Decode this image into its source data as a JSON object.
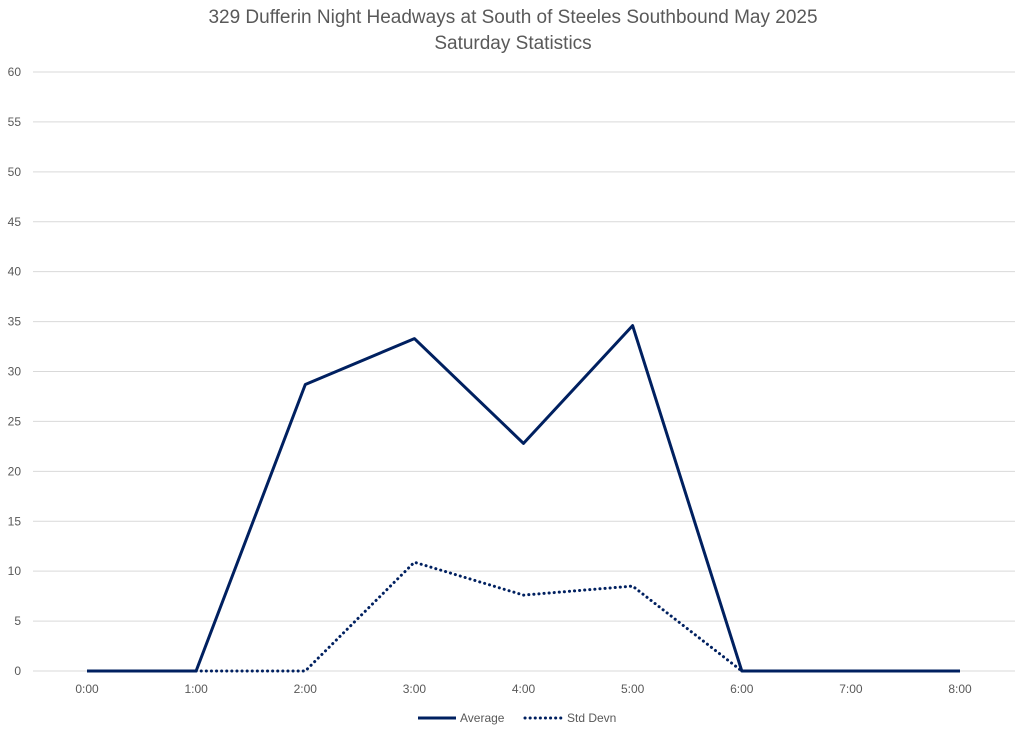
{
  "chart_data": {
    "type": "line",
    "title": "329 Dufferin Night Headways at South of Steeles Southbound May 2025",
    "subtitle": "Saturday Statistics",
    "xlabel": "",
    "ylabel": "",
    "categories": [
      "0:00",
      "1:00",
      "2:00",
      "3:00",
      "4:00",
      "5:00",
      "6:00",
      "7:00",
      "8:00"
    ],
    "ylim": [
      0,
      60
    ],
    "yticks": [
      0,
      5,
      10,
      15,
      20,
      25,
      30,
      35,
      40,
      45,
      50,
      55,
      60
    ],
    "grid": true,
    "legend_position": "bottom",
    "series": [
      {
        "name": "Average",
        "values": [
          0,
          0,
          28.7,
          33.3,
          22.8,
          34.6,
          0,
          0,
          0
        ],
        "color": "#002060",
        "style": "solid"
      },
      {
        "name": "Std Devn",
        "values": [
          null,
          0,
          0,
          10.9,
          7.6,
          8.5,
          0,
          null,
          null
        ],
        "color": "#002060",
        "style": "dotted"
      }
    ]
  }
}
